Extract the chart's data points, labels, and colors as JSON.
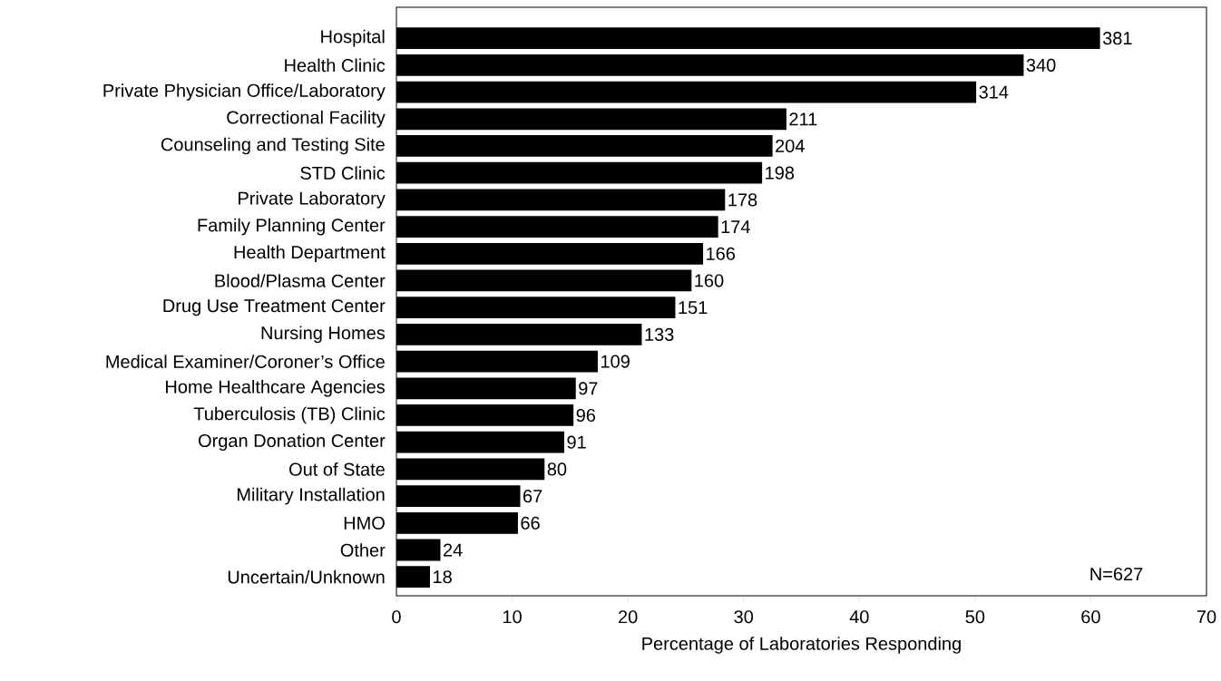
{
  "chart_data": {
    "type": "bar",
    "orientation": "horizontal",
    "categories": [
      "Hospital",
      "Health Clinic",
      "Private Physician Office/Laboratory",
      "Correctional Facility",
      "Counseling and Testing Site",
      "STD Clinic",
      "Private Laboratory",
      "Family Planning Center",
      "Health Department",
      "Blood/Plasma Center",
      "Drug Use Treatment Center",
      "Nursing Homes",
      "Medical Examiner/Coroner’s Office",
      "Home Healthcare Agencies",
      "Tuberculosis (TB) Clinic",
      "Organ Donation Center",
      "Out of State",
      "Military Installation",
      "HMO",
      "Other",
      "Uncertain/Unknown"
    ],
    "values": [
      60.8,
      54.2,
      50.1,
      33.7,
      32.5,
      31.6,
      28.4,
      27.8,
      26.5,
      25.5,
      24.1,
      21.2,
      17.4,
      15.5,
      15.3,
      14.5,
      12.8,
      10.7,
      10.5,
      3.8,
      2.9
    ],
    "color": "#000000",
    "xlim": [
      0,
      70
    ],
    "xticks": [
      0,
      10,
      20,
      30,
      40,
      50,
      60,
      70
    ],
    "xlabel": "Percentage of Laboratories Responding",
    "annotations": [
      {
        "text": "381",
        "x": 60.8,
        "y": "Hospital"
      },
      {
        "text": "340",
        "x": 54.2,
        "y": "Health Clinic"
      },
      {
        "text": "314",
        "x": 50.1,
        "y": "Private Physician Office/Laboratory"
      },
      {
        "text": "211",
        "x": 33.7,
        "y": "Correctional Facility"
      },
      {
        "text": "204",
        "x": 32.5,
        "y": "Counseling and Testing Site"
      },
      {
        "text": "198",
        "x": 31.6,
        "y": "STD Clinic"
      },
      {
        "text": "178",
        "x": 28.4,
        "y": "Private Laboratory"
      },
      {
        "text": "174",
        "x": 27.8,
        "y": "Family Planning Center"
      },
      {
        "text": "166",
        "x": 26.5,
        "y": "Health Department"
      },
      {
        "text": "160",
        "x": 25.5,
        "y": "Blood/Plasma Center"
      },
      {
        "text": "151",
        "x": 24.1,
        "y": "Drug Use Treatment Center"
      },
      {
        "text": "133",
        "x": 21.2,
        "y": "Nursing Homes"
      },
      {
        "text": "109",
        "x": 17.4,
        "y": "Medical Examiner/Coroner’s Office"
      },
      {
        "text": "97",
        "x": 15.5,
        "y": "Home Healthcare Agencies"
      },
      {
        "text": "96",
        "x": 15.3,
        "y": "Tuberculosis (TB) Clinic"
      },
      {
        "text": "91",
        "x": 14.5,
        "y": "Organ Donation Center"
      },
      {
        "text": "80",
        "x": 12.8,
        "y": "Out of State"
      },
      {
        "text": "67",
        "x": 10.7,
        "y": "Military Installation"
      },
      {
        "text": "66",
        "x": 10.5,
        "y": "HMO"
      },
      {
        "text": "24",
        "x": 3.8,
        "y": "Other"
      },
      {
        "text": "18",
        "x": 2.9,
        "y": "Uncertain/Unknown"
      },
      "N=627"
    ]
  }
}
